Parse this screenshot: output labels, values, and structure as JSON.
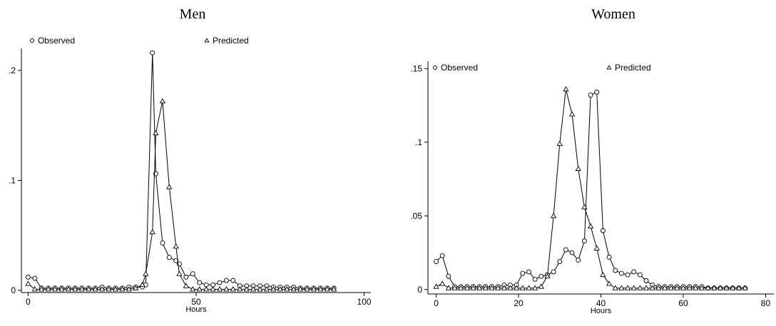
{
  "chart_data": [
    {
      "type": "line",
      "title": "Men",
      "xlabel": "Hours",
      "ylabel": "",
      "xlim": [
        -2,
        102
      ],
      "ylim": [
        -0.002,
        0.22
      ],
      "xticks": [
        0,
        50,
        100
      ],
      "xtick_labels": [
        "0",
        "50",
        "100"
      ],
      "yticks": [
        0,
        0.1,
        0.2
      ],
      "ytick_labels": [
        "0",
        ".1",
        ".2"
      ],
      "legend": [
        "Observed",
        "Predicted"
      ],
      "legend_placement": "top",
      "series": [
        {
          "name": "Observed",
          "marker": "circle",
          "x": [
            0,
            2,
            4,
            6,
            8,
            10,
            12,
            14,
            16,
            18,
            20,
            22,
            24,
            26,
            28,
            30,
            32,
            34,
            35,
            37,
            38,
            40,
            42,
            44,
            45,
            47,
            49,
            51,
            53,
            55,
            57,
            59,
            61,
            63,
            65,
            67,
            69,
            71,
            73,
            75,
            77,
            79,
            81,
            83,
            85,
            87,
            89,
            91
          ],
          "y": [
            0.012,
            0.011,
            0.002,
            0.002,
            0.002,
            0.002,
            0.002,
            0.002,
            0.002,
            0.002,
            0.002,
            0.003,
            0.002,
            0.002,
            0.002,
            0.003,
            0.003,
            0.003,
            0.005,
            0.216,
            0.106,
            0.043,
            0.03,
            0.027,
            0.024,
            0.012,
            0.015,
            0.007,
            0.005,
            0.005,
            0.007,
            0.009,
            0.009,
            0.004,
            0.004,
            0.004,
            0.004,
            0.004,
            0.003,
            0.003,
            0.003,
            0.003,
            0.002,
            0.002,
            0.002,
            0.002,
            0.002,
            0.002
          ]
        },
        {
          "name": "Predicted",
          "marker": "triangle",
          "x": [
            0,
            2,
            4,
            6,
            8,
            10,
            12,
            14,
            16,
            18,
            20,
            22,
            24,
            26,
            28,
            30,
            32,
            34,
            35,
            37,
            38,
            40,
            42,
            44,
            45,
            47,
            49,
            51,
            53,
            55,
            57,
            59,
            61,
            63,
            65,
            67,
            69,
            71,
            73,
            75,
            77,
            79,
            81,
            83,
            85,
            87,
            89,
            91
          ],
          "y": [
            0.006,
            0.001,
            0.001,
            0.001,
            0.001,
            0.001,
            0.001,
            0.001,
            0.001,
            0.001,
            0.001,
            0.001,
            0.001,
            0.001,
            0.001,
            0.001,
            0.002,
            0.005,
            0.015,
            0.053,
            0.143,
            0.172,
            0.094,
            0.04,
            0.015,
            0.004,
            0.001,
            0.001,
            0.001,
            0.001,
            0.001,
            0.001,
            0.001,
            0.001,
            0.001,
            0.001,
            0.001,
            0.001,
            0.001,
            0.001,
            0.001,
            0.001,
            0.001,
            0.001,
            0.001,
            0.001,
            0.001,
            0.001
          ]
        }
      ]
    },
    {
      "type": "line",
      "title": "Women",
      "xlabel": "Hours",
      "ylabel": "",
      "xlim": [
        -2,
        82
      ],
      "ylim": [
        -0.003,
        0.155
      ],
      "xticks": [
        0,
        20,
        40,
        60,
        80
      ],
      "xtick_labels": [
        "0",
        "20",
        "40",
        "60",
        "80"
      ],
      "yticks": [
        0,
        0.05,
        0.1,
        0.15
      ],
      "ytick_labels": [
        "0",
        ".05",
        ".1",
        ".15"
      ],
      "legend": [
        "Observed",
        "Predicted"
      ],
      "legend_placement": "top",
      "series": [
        {
          "name": "Observed",
          "marker": "circle",
          "x": [
            0,
            1.5,
            3,
            4.5,
            6,
            7.5,
            9,
            10.5,
            12,
            13.5,
            15,
            16.5,
            18,
            19.5,
            21,
            22.5,
            24,
            25.5,
            27,
            28.5,
            30,
            31.5,
            33,
            34.5,
            36,
            37.5,
            39,
            40.5,
            42,
            43.5,
            45,
            46.5,
            48,
            49.5,
            51,
            52.5,
            54,
            55.5,
            57,
            58.5,
            60,
            61.5,
            63,
            64.5,
            66,
            67.5,
            69,
            70.5,
            72,
            73.5,
            75
          ],
          "y": [
            0.019,
            0.023,
            0.009,
            0.002,
            0.002,
            0.002,
            0.002,
            0.002,
            0.002,
            0.002,
            0.002,
            0.003,
            0.003,
            0.003,
            0.011,
            0.012,
            0.007,
            0.009,
            0.01,
            0.012,
            0.019,
            0.027,
            0.025,
            0.02,
            0.033,
            0.132,
            0.134,
            0.04,
            0.022,
            0.013,
            0.011,
            0.01,
            0.012,
            0.01,
            0.006,
            0.003,
            0.002,
            0.002,
            0.002,
            0.002,
            0.002,
            0.002,
            0.002,
            0.002,
            0.001,
            0.001,
            0.001,
            0.001,
            0.001,
            0.001,
            0.001
          ]
        },
        {
          "name": "Predicted",
          "marker": "triangle",
          "x": [
            0,
            1.5,
            3,
            4.5,
            6,
            7.5,
            9,
            10.5,
            12,
            13.5,
            15,
            16.5,
            18,
            19.5,
            21,
            22.5,
            24,
            25.5,
            27,
            28.5,
            30,
            31.5,
            33,
            34.5,
            36,
            37.5,
            39,
            40.5,
            42,
            43.5,
            45,
            46.5,
            48,
            49.5,
            51,
            52.5,
            54,
            55.5,
            57,
            58.5,
            60,
            61.5,
            63,
            64.5,
            66,
            67.5,
            69,
            70.5,
            72,
            73.5,
            75
          ],
          "y": [
            0.002,
            0.004,
            0.001,
            0.001,
            0.001,
            0.001,
            0.001,
            0.001,
            0.001,
            0.001,
            0.001,
            0.001,
            0.001,
            0.001,
            0.001,
            0.001,
            0.001,
            0.002,
            0.009,
            0.05,
            0.099,
            0.136,
            0.119,
            0.082,
            0.056,
            0.043,
            0.028,
            0.01,
            0.004,
            0.001,
            0.001,
            0.001,
            0.001,
            0.001,
            0.001,
            0.001,
            0.001,
            0.001,
            0.001,
            0.001,
            0.001,
            0.001,
            0.001,
            0.001,
            0.001,
            0.001,
            0.001,
            0.001,
            0.001,
            0.001,
            0.001
          ]
        }
      ]
    }
  ]
}
